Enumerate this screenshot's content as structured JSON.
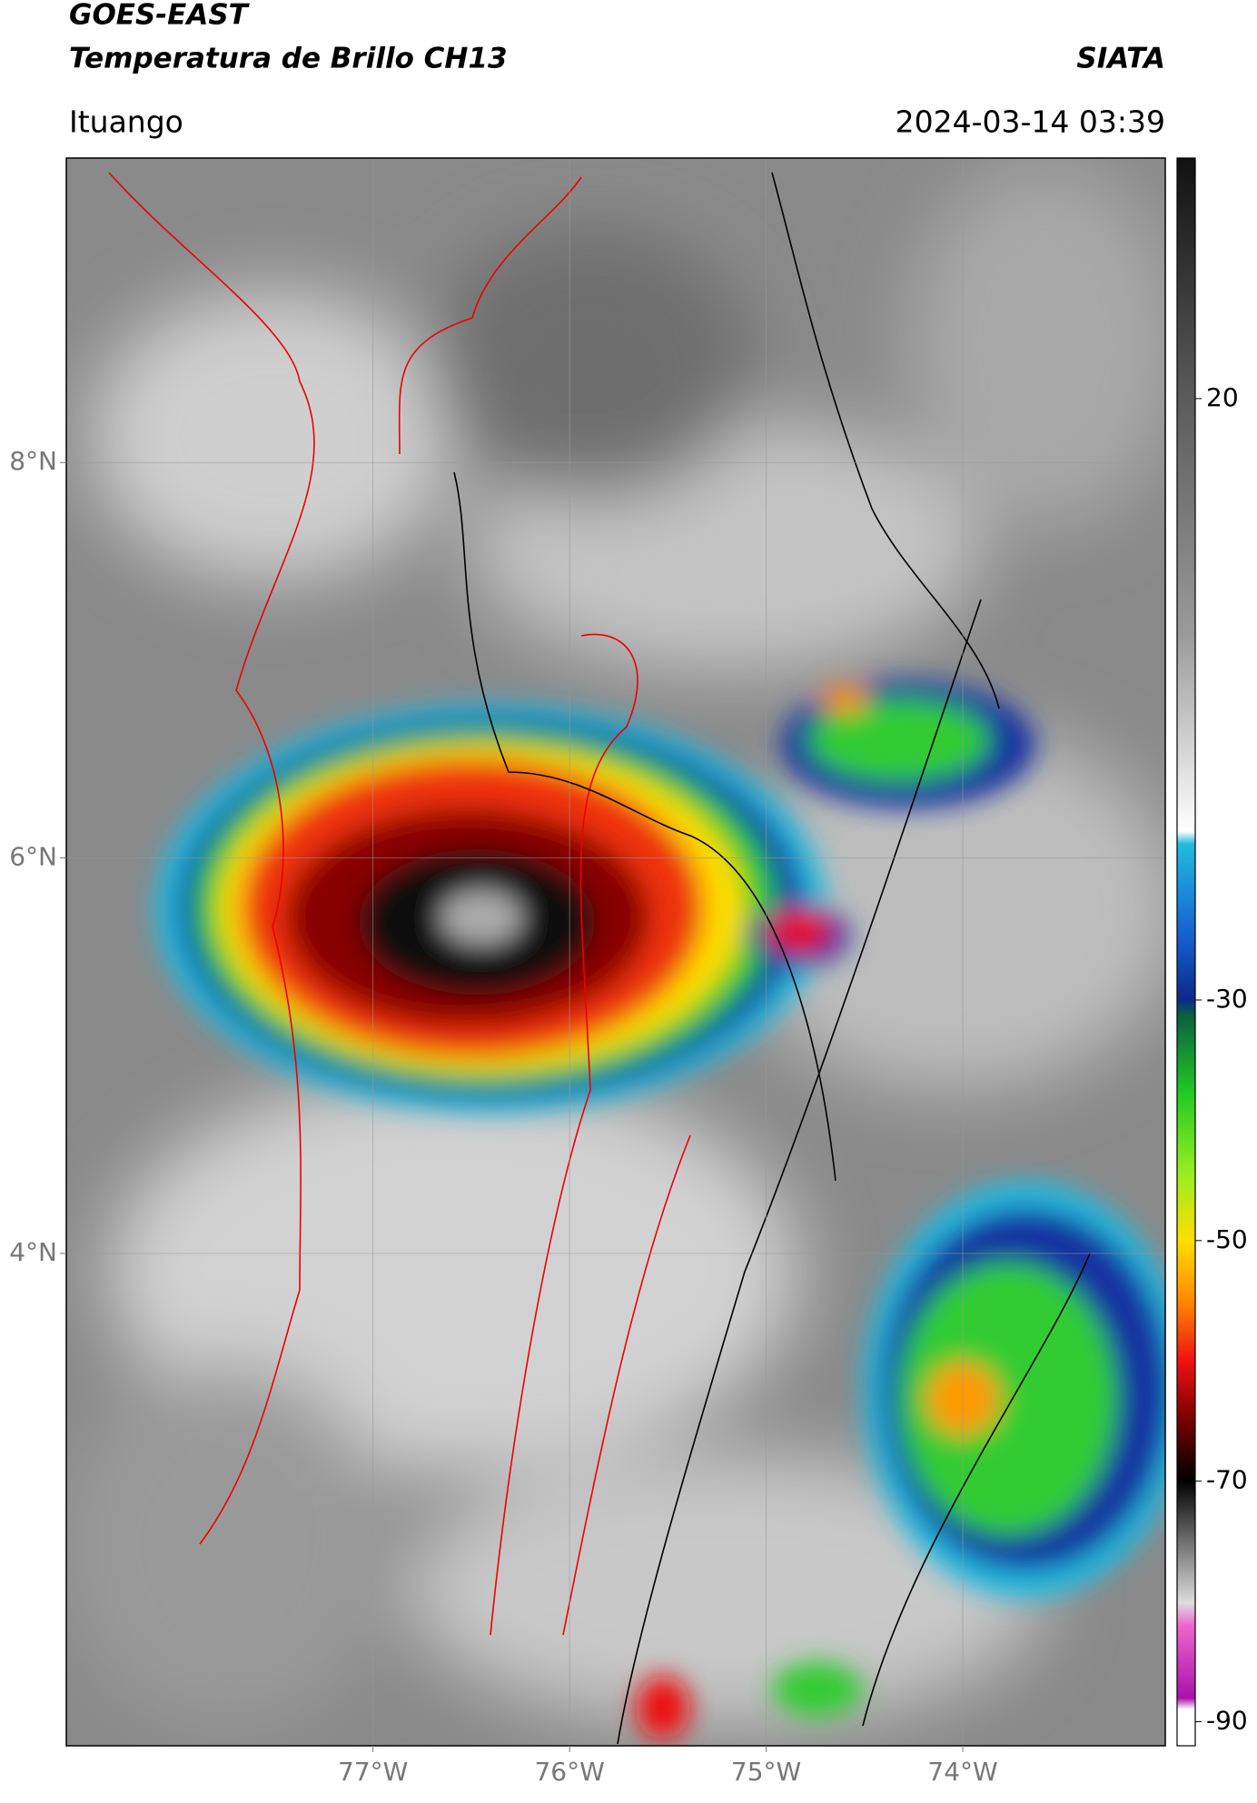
{
  "header": {
    "satellite": "GOES-EAST",
    "product": "Temperatura de Brillo CH13",
    "source": "SIATA",
    "location": "Ituango",
    "datetime": "2024-03-14 03:39"
  },
  "map": {
    "xlim": [
      -78.56,
      -72.97
    ],
    "ylim": [
      1.51,
      9.54
    ],
    "xticks": [
      {
        "value": -77,
        "label": "77°W"
      },
      {
        "value": -76,
        "label": "76°W"
      },
      {
        "value": -75,
        "label": "75°W"
      },
      {
        "value": -74,
        "label": "74°W"
      }
    ],
    "yticks": [
      {
        "value": 8,
        "label": "8°N"
      },
      {
        "value": 6,
        "label": "6°N"
      },
      {
        "value": 4,
        "label": "4°N"
      }
    ],
    "grid": true
  },
  "colorbar": {
    "lim": [
      -92,
      40
    ],
    "ticks": [
      20,
      -30,
      -50,
      -70,
      -90
    ]
  }
}
